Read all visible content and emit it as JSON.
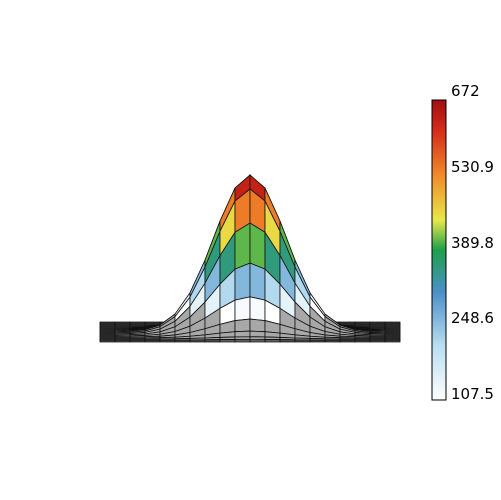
{
  "chart_data": {
    "type": "surface",
    "title": "",
    "xlabel": "",
    "ylabel": "",
    "zlabel": "",
    "surface": {
      "function": "gaussian",
      "peak": 672,
      "base": 0,
      "grid_lines": 20
    },
    "colorbar": {
      "min": 107.5,
      "max": 672,
      "ticks": [
        "672",
        "530.9",
        "389.8",
        "248.6",
        "107.5"
      ],
      "tick_values": [
        672,
        530.9,
        389.8,
        248.6,
        107.5
      ],
      "colormap": [
        "#ffffff",
        "#b9def0",
        "#4a90c8",
        "#1ea04a",
        "#e8e84a",
        "#f08a2a",
        "#d42a1a",
        "#a01010"
      ]
    },
    "grid": false,
    "legend": "colorbar-right"
  }
}
